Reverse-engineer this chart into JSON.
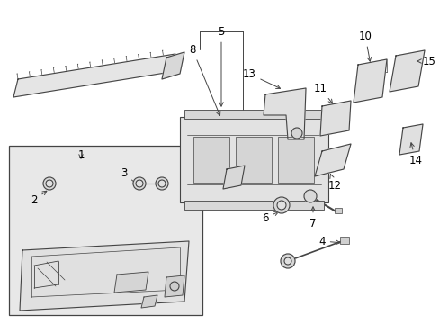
{
  "bg_color": "#ffffff",
  "line_color": "#444444",
  "label_color": "#000000",
  "fig_width": 4.89,
  "fig_height": 3.6,
  "dpi": 100,
  "part_fill": "#e8e8e8",
  "part_fill2": "#f0f0f0",
  "box_fill": "#e0e0e0"
}
